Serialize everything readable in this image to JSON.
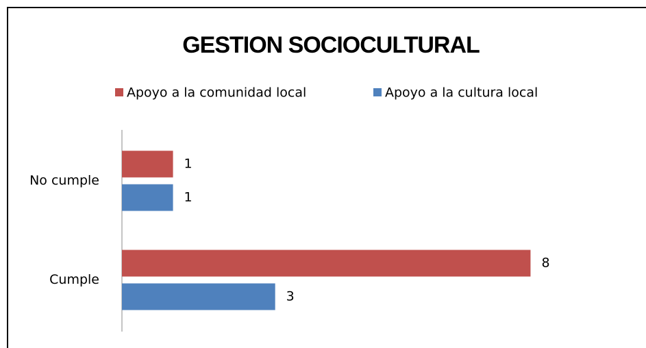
{
  "chart_data": {
    "type": "bar",
    "orientation": "horizontal",
    "title": "GESTION SOCIOCULTURAL",
    "categories": [
      "No cumple",
      "Cumple"
    ],
    "series": [
      {
        "name": "Apoyo a la comunidad local",
        "color": "#c0504d",
        "values": [
          1,
          8
        ]
      },
      {
        "name": "Apoyo a la cultura local",
        "color": "#4f81bd",
        "values": [
          1,
          3
        ]
      }
    ],
    "xlim": [
      0,
      9
    ],
    "legend": "top"
  }
}
